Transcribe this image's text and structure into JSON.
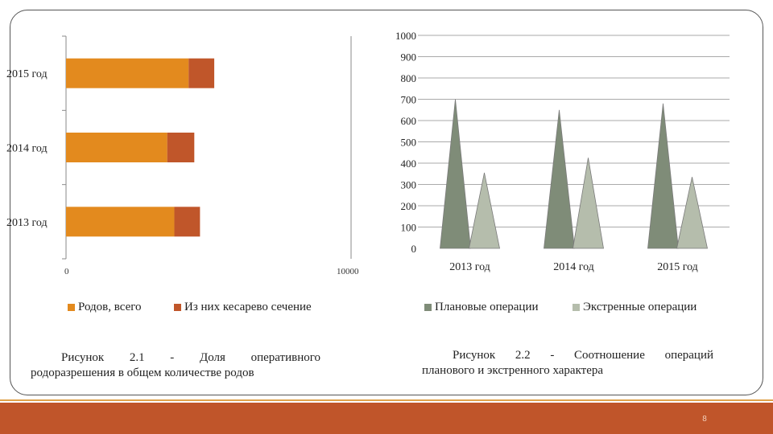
{
  "chart_data": [
    {
      "type": "bar",
      "orientation": "horizontal",
      "stacked": true,
      "categories": [
        "2013 год",
        "2014 год",
        "2015 год"
      ],
      "series": [
        {
          "name": "Родов, всего",
          "values": [
            3800,
            3550,
            4300
          ],
          "color": "#e38a1e"
        },
        {
          "name": "Из них кесарево сечение",
          "values": [
            900,
            950,
            900
          ],
          "color": "#c0562a"
        }
      ],
      "xlim": [
        0,
        10000
      ],
      "x_tick_labels": [
        "0",
        "10000"
      ],
      "legend": "bottom"
    },
    {
      "type": "bar",
      "shape": "cone",
      "categories": [
        "2013 год",
        "2014 год",
        "2015 год"
      ],
      "series": [
        {
          "name": "Плановые операции",
          "values": [
            700,
            650,
            680
          ],
          "color": "#7f8c78"
        },
        {
          "name": "Экстренные операции",
          "values": [
            355,
            425,
            335
          ],
          "color": "#b5bdac"
        }
      ],
      "ylim": [
        0,
        1000
      ],
      "y_tick_labels": [
        "0",
        "100",
        "200",
        "300",
        "400",
        "500",
        "600",
        "700",
        "800",
        "900",
        "1000"
      ],
      "grid": true,
      "legend": "bottom"
    }
  ],
  "captions": {
    "left_line1": "Рисунок 2.1 - Доля оперативного",
    "left_line2": "родоразрешения в общем количестве родов",
    "right_line1": "Рисунок 2.2 - Соотношение операций",
    "right_line2": "планового и экстренного характера"
  },
  "page_number": "8"
}
